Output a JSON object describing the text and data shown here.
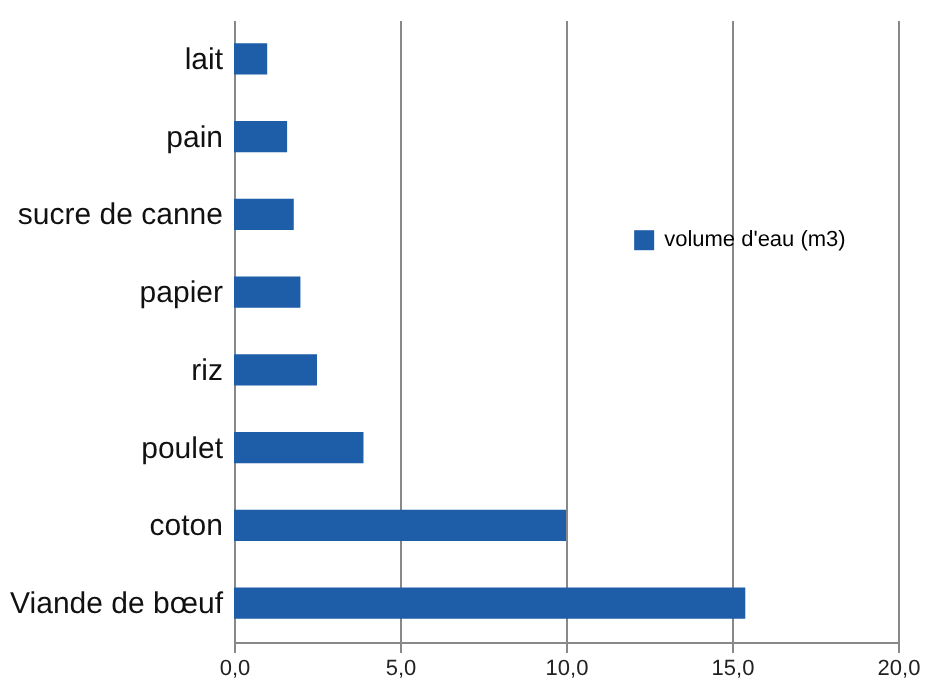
{
  "chart_data": {
    "type": "bar",
    "orientation": "horizontal",
    "categories": [
      "lait",
      "pain",
      "sucre de canne",
      "papier",
      "riz",
      "poulet",
      "coton",
      "Viande de bœuf"
    ],
    "series": [
      {
        "name": "volume d'eau (m3)",
        "color": "#1e5ea8",
        "values": [
          1.0,
          1.6,
          1.8,
          2.0,
          2.5,
          3.9,
          10.0,
          15.4
        ]
      }
    ],
    "xlim": [
      0,
      20
    ],
    "xticks": [
      {
        "value": 0,
        "label": "0,0"
      },
      {
        "value": 5,
        "label": "5,0"
      },
      {
        "value": 10,
        "label": "10,0"
      },
      {
        "value": 15,
        "label": "15,0"
      },
      {
        "value": 20,
        "label": "20,0"
      }
    ],
    "grid": "x",
    "legend": "right"
  }
}
